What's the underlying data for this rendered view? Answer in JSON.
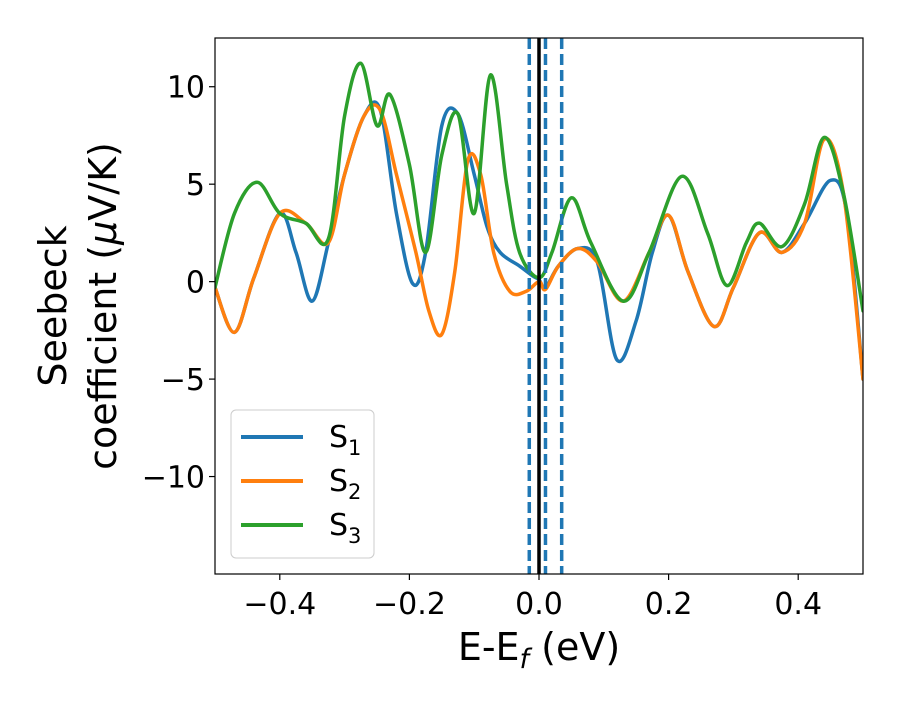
{
  "chart_data": {
    "type": "line",
    "title": "",
    "xlabel": "E-E",
    "xlabel_sub": "f",
    "xlabel_unit": " (eV)",
    "ylabel_line1": "Seebeck",
    "ylabel_line2_prefix": "coefficient  (",
    "ylabel_mu": "μ",
    "ylabel_line2_suffix": "V/K)",
    "xlim": [
      -0.5,
      0.5
    ],
    "ylim": [
      -15,
      12.5
    ],
    "xticks": [
      -0.4,
      -0.2,
      0.0,
      0.2,
      0.4
    ],
    "xtick_labels": [
      "−0.4",
      "−0.2",
      "0.0",
      "0.2",
      "0.4"
    ],
    "yticks": [
      -10,
      -5,
      0,
      5,
      10
    ],
    "ytick_labels": [
      "−10",
      "−5",
      "0",
      "5",
      "10"
    ],
    "grid": false,
    "legend_position": "lower-left",
    "fermi_line": {
      "x": 0.0,
      "color": "#000000"
    },
    "dashed_lines": {
      "x": [
        -0.015,
        0.01,
        0.035
      ],
      "color": "#1f77b4"
    },
    "series": [
      {
        "name": "S",
        "subscript": "1",
        "color": "#1f77b4",
        "points": [
          [
            -0.5,
            -0.3
          ],
          [
            -0.47,
            -2.6
          ],
          [
            -0.44,
            0.2
          ],
          [
            -0.4,
            3.5
          ],
          [
            -0.375,
            1.5
          ],
          [
            -0.35,
            -1.0
          ],
          [
            -0.325,
            2.0
          ],
          [
            -0.3,
            5.5
          ],
          [
            -0.27,
            8.5
          ],
          [
            -0.245,
            8.8
          ],
          [
            -0.22,
            3.5
          ],
          [
            -0.195,
            -0.1
          ],
          [
            -0.175,
            1.5
          ],
          [
            -0.15,
            8.0
          ],
          [
            -0.125,
            8.6
          ],
          [
            -0.1,
            5.5
          ],
          [
            -0.08,
            2.8
          ],
          [
            -0.06,
            1.5
          ],
          [
            -0.03,
            0.8
          ],
          [
            -0.01,
            0.3
          ],
          [
            0.0,
            0.1
          ],
          [
            0.01,
            -0.3
          ],
          [
            0.03,
            0.8
          ],
          [
            0.06,
            1.7
          ],
          [
            0.09,
            1.0
          ],
          [
            0.12,
            -4.0
          ],
          [
            0.15,
            -2.0
          ],
          [
            0.175,
            1.5
          ],
          [
            0.2,
            3.4
          ],
          [
            0.23,
            0.5
          ],
          [
            0.27,
            -2.3
          ],
          [
            0.3,
            -0.3
          ],
          [
            0.34,
            2.5
          ],
          [
            0.375,
            1.5
          ],
          [
            0.41,
            3.0
          ],
          [
            0.45,
            5.2
          ],
          [
            0.475,
            3.5
          ],
          [
            0.5,
            -5.0
          ]
        ]
      },
      {
        "name": "S",
        "subscript": "2",
        "color": "#ff7f0e",
        "points": [
          [
            -0.5,
            -0.3
          ],
          [
            -0.47,
            -2.6
          ],
          [
            -0.44,
            0.2
          ],
          [
            -0.4,
            3.5
          ],
          [
            -0.36,
            3.0
          ],
          [
            -0.325,
            2.0
          ],
          [
            -0.3,
            5.5
          ],
          [
            -0.27,
            8.5
          ],
          [
            -0.245,
            8.8
          ],
          [
            -0.22,
            5.5
          ],
          [
            -0.19,
            1.5
          ],
          [
            -0.17,
            -1.5
          ],
          [
            -0.15,
            -2.7
          ],
          [
            -0.13,
            0.5
          ],
          [
            -0.11,
            6.2
          ],
          [
            -0.09,
            5.5
          ],
          [
            -0.07,
            1.5
          ],
          [
            -0.045,
            -0.5
          ],
          [
            -0.02,
            -0.5
          ],
          [
            0.0,
            0.0
          ],
          [
            0.01,
            -0.4
          ],
          [
            0.03,
            0.8
          ],
          [
            0.06,
            1.7
          ],
          [
            0.09,
            1.0
          ],
          [
            0.13,
            -1.0
          ],
          [
            0.17,
            1.5
          ],
          [
            0.2,
            3.4
          ],
          [
            0.23,
            0.5
          ],
          [
            0.27,
            -2.3
          ],
          [
            0.3,
            -0.3
          ],
          [
            0.34,
            2.5
          ],
          [
            0.375,
            1.5
          ],
          [
            0.41,
            3.0
          ],
          [
            0.44,
            7.3
          ],
          [
            0.47,
            4.5
          ],
          [
            0.5,
            -5.0
          ]
        ]
      },
      {
        "name": "S",
        "subscript": "3",
        "color": "#2ca02c",
        "points": [
          [
            -0.5,
            -0.3
          ],
          [
            -0.47,
            3.5
          ],
          [
            -0.435,
            5.1
          ],
          [
            -0.4,
            3.5
          ],
          [
            -0.36,
            3.0
          ],
          [
            -0.325,
            2.2
          ],
          [
            -0.3,
            8.5
          ],
          [
            -0.275,
            11.2
          ],
          [
            -0.25,
            8.0
          ],
          [
            -0.23,
            9.6
          ],
          [
            -0.2,
            6.0
          ],
          [
            -0.175,
            1.5
          ],
          [
            -0.15,
            6.5
          ],
          [
            -0.125,
            8.6
          ],
          [
            -0.1,
            3.5
          ],
          [
            -0.075,
            10.6
          ],
          [
            -0.05,
            5.0
          ],
          [
            -0.03,
            1.5
          ],
          [
            0.0,
            0.2
          ],
          [
            0.02,
            1.5
          ],
          [
            0.05,
            4.3
          ],
          [
            0.08,
            2.0
          ],
          [
            0.13,
            -1.0
          ],
          [
            0.17,
            1.5
          ],
          [
            0.22,
            5.4
          ],
          [
            0.26,
            2.5
          ],
          [
            0.29,
            -0.2
          ],
          [
            0.32,
            2.0
          ],
          [
            0.34,
            3.0
          ],
          [
            0.375,
            1.8
          ],
          [
            0.41,
            4.0
          ],
          [
            0.44,
            7.4
          ],
          [
            0.47,
            4.5
          ],
          [
            0.5,
            -1.5
          ]
        ]
      }
    ]
  }
}
